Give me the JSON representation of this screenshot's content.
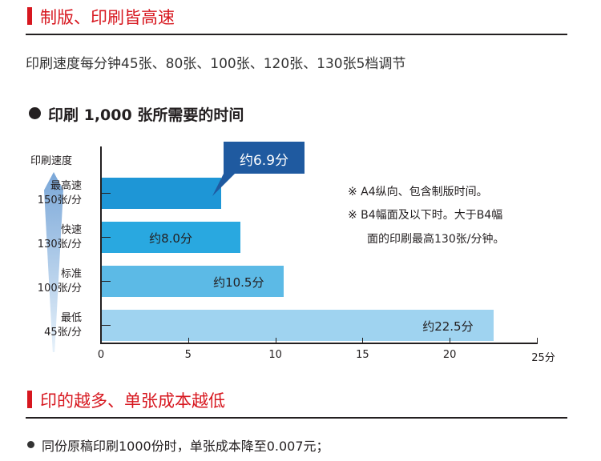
{
  "section1": {
    "title": "制版、印刷皆高速",
    "desc": "印刷速度每分钟45张、80张、100张、120张、130张5档调节"
  },
  "chart_data": {
    "type": "bar",
    "orientation": "horizontal",
    "title": "印刷 1,000 张所需要的时间",
    "ylabel": "印刷速度",
    "categories": [
      {
        "name": "最高速",
        "speed": "150张/分"
      },
      {
        "name": "快速",
        "speed": "130张/分"
      },
      {
        "name": "标准",
        "speed": "100张/分"
      },
      {
        "name": "最低",
        "speed": "45张/分"
      }
    ],
    "values": [
      6.9,
      8.0,
      10.5,
      22.5
    ],
    "data_labels": [
      "约6.9分",
      "约8.0分",
      "约10.5分",
      "约22.5分"
    ],
    "xlim": [
      0,
      25
    ],
    "xticks": [
      "0",
      "5",
      "10",
      "15",
      "20",
      "25分"
    ],
    "colors": [
      "#1e96d6",
      "#29a8e0",
      "#5cbae6",
      "#9fd3f0"
    ],
    "callout_color": "#1f5aa0",
    "notes": [
      "※ A4纵向、包含制版时间。",
      "※ B4幅面及以下时。大于B4幅",
      "面的印刷最高130张/分钟。"
    ]
  },
  "section2": {
    "title": "印的越多、单张成本越低",
    "bullet": "同份原稿印刷1000份时，单张成本降至0.007元；"
  }
}
